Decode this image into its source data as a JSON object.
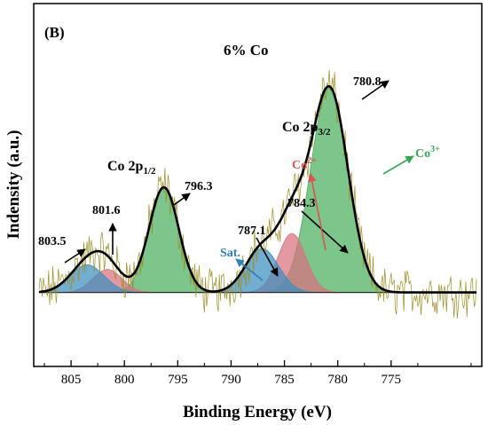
{
  "chart_data": {
    "type": "line",
    "panel_label": "(B)",
    "title": "6% Co",
    "xlabel": "Binding Energy (eV)",
    "ylabel": "Indensity (a.u.)",
    "xlim": [
      808.5,
      766.5
    ],
    "x_reversed": true,
    "ylim": [
      -0.32,
      1.25
    ],
    "x_ticks": [
      805,
      800,
      795,
      790,
      785,
      780,
      775
    ],
    "baseline": 0,
    "peaks": [
      {
        "name": "Co3+ 2p3/2",
        "center": 780.8,
        "height": 0.885,
        "width": 1.75,
        "color": "#4aae5e"
      },
      {
        "name": "Co2+ 2p3/2",
        "center": 784.3,
        "height": 0.255,
        "width": 1.3,
        "color": "#d9707e"
      },
      {
        "name": "Sat. 2p3/2",
        "center": 787.1,
        "height": 0.19,
        "width": 1.55,
        "color": "#3c8fbe"
      },
      {
        "name": "Co3+ 2p1/2",
        "center": 796.3,
        "height": 0.455,
        "width": 1.4,
        "color": "#4aae5e"
      },
      {
        "name": "Co2+ 2p1/2",
        "center": 801.6,
        "height": 0.1,
        "width": 1.35,
        "color": "#d9707e"
      },
      {
        "name": "Sat. 2p1/2",
        "center": 803.5,
        "height": 0.12,
        "width": 1.6,
        "color": "#3c8fbe"
      }
    ],
    "annotations": [
      {
        "text": "780.8",
        "x": 780.8
      },
      {
        "text": "784.3",
        "x": 784.3
      },
      {
        "text": "787.1",
        "x": 787.1
      },
      {
        "text": "796.3",
        "x": 796.3
      },
      {
        "text": "801.6",
        "x": 801.6
      },
      {
        "text": "803.5",
        "x": 803.5
      }
    ],
    "region_labels": [
      {
        "text": "Co 2p",
        "sub": "3/2"
      },
      {
        "text": "Co 2p",
        "sub": "1/2"
      }
    ],
    "species_labels": [
      {
        "text": "Co",
        "sup": "3+",
        "color": "#3aa657"
      },
      {
        "text": "Co",
        "sup": "2+",
        "color": "#d9534f"
      },
      {
        "text": "Sat.",
        "sup": "",
        "color": "#2c7fb8"
      }
    ],
    "colors": {
      "raw": "#9c8e28",
      "fit": "#000000",
      "co3": "#4aae5e",
      "co2": "#d9707e",
      "sat": "#3c8fbe"
    }
  }
}
